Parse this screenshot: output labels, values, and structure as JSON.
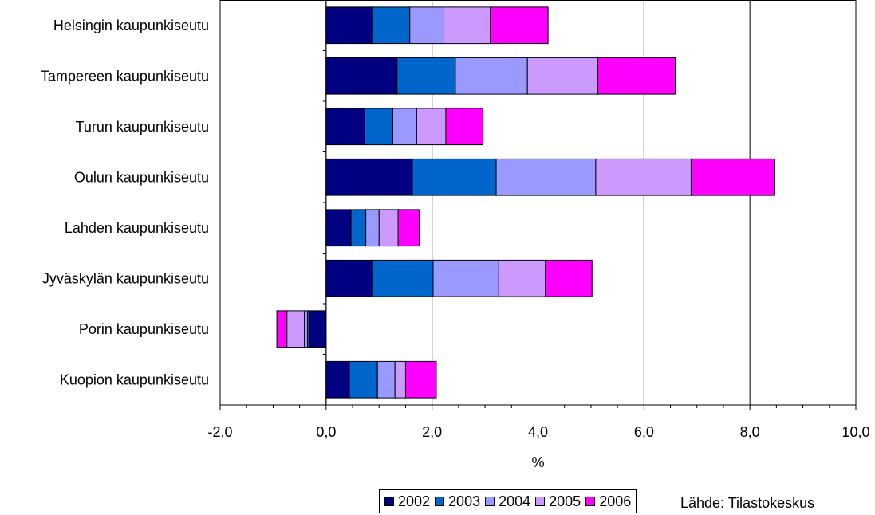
{
  "chart_data": {
    "type": "bar",
    "orientation": "horizontal",
    "stacked": true,
    "categories": [
      "Helsingin kaupunkiseutu",
      "Tampereen kaupunkiseutu",
      "Turun kaupunkiseutu",
      "Oulun kaupunkiseutu",
      "Lahden kaupunkiseutu",
      "Jyväskylän kaupunkiseutu",
      "Porin kaupunkiseutu",
      "Kuopion kaupunkiseutu"
    ],
    "series": [
      {
        "name": "2002",
        "color": "#000080",
        "values": [
          0.88,
          1.34,
          0.73,
          1.63,
          0.47,
          0.88,
          -0.31,
          0.44
        ]
      },
      {
        "name": "2003",
        "color": "#0066CC",
        "values": [
          0.7,
          1.1,
          0.53,
          1.58,
          0.28,
          1.14,
          -0.04,
          0.53
        ]
      },
      {
        "name": "2004",
        "color": "#9999FF",
        "values": [
          0.63,
          1.36,
          0.45,
          1.88,
          0.25,
          1.24,
          -0.06,
          0.33
        ]
      },
      {
        "name": "2005",
        "color": "#CC99FF",
        "values": [
          0.89,
          1.33,
          0.55,
          1.8,
          0.36,
          0.88,
          -0.33,
          0.2
        ]
      },
      {
        "name": "2006",
        "color": "#FF00FF",
        "values": [
          1.09,
          1.46,
          0.7,
          1.58,
          0.4,
          0.88,
          -0.19,
          0.58
        ]
      }
    ],
    "xlabel": "%",
    "xlim": [
      -2.0,
      10.0
    ],
    "xticks": [
      "-2,0",
      "0,0",
      "2,0",
      "4,0",
      "6,0",
      "8,0",
      "10,0"
    ],
    "xtick_values": [
      -2,
      0,
      2,
      4,
      6,
      8,
      10
    ],
    "grid": "vertical",
    "legend_position": "bottom"
  },
  "source_text": "Lähde: Tilastokeskus"
}
